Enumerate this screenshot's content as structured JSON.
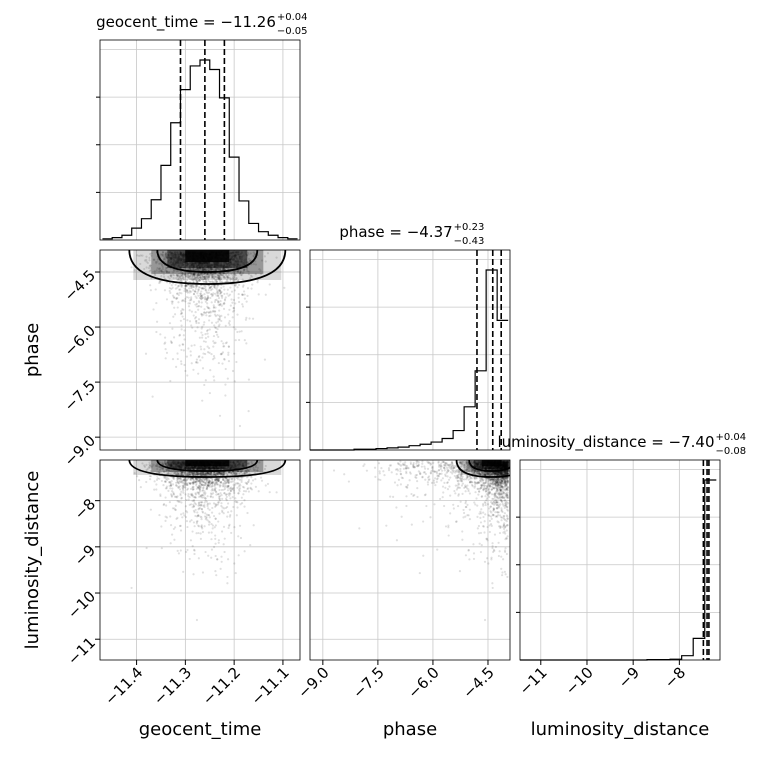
{
  "chart_data": {
    "type": "corner",
    "parameters": [
      "geocent_time",
      "phase",
      "luminosity_distance"
    ],
    "axis_labels": {
      "geocent_time": "geocent_time",
      "phase": "phase",
      "luminosity_distance": "luminosity_distance"
    },
    "titles": {
      "geocent_time": {
        "prefix": "geocent_time = ",
        "value": "−11.26",
        "plus": "+0.04",
        "minus": "−0.05"
      },
      "phase": {
        "prefix": "phase = ",
        "value": "−4.37",
        "plus": "+0.23",
        "minus": "−0.43"
      },
      "luminosity_distance": {
        "prefix": "luminosity_distance = ",
        "value": "−7.40",
        "plus": "+0.04",
        "minus": "−0.08"
      }
    },
    "ranges": {
      "geocent_time": [
        -11.475,
        -11.065
      ],
      "phase": [
        -9.35,
        -3.9
      ],
      "luminosity_distance": [
        -11.45,
        -7.12
      ]
    },
    "ticks": {
      "geocent_time": {
        "values": [
          -11.4,
          -11.3,
          -11.2,
          -11.1
        ],
        "labels": [
          "−11.4",
          "−11.3",
          "−11.2",
          "−11.1"
        ]
      },
      "phase": {
        "values": [
          -9.0,
          -7.5,
          -6.0,
          -4.5
        ],
        "labels": [
          "−9.0",
          "−7.5",
          "−6.0",
          "−4.5"
        ]
      },
      "luminosity_distance": {
        "values": [
          -11,
          -10,
          -9,
          -8
        ],
        "labels": [
          "−11",
          "−10",
          "−9",
          "−8"
        ]
      }
    },
    "quantiles": {
      "geocent_time": [
        -11.31,
        -11.26,
        -11.22
      ],
      "phase": [
        -4.8,
        -4.37,
        -4.14
      ],
      "luminosity_distance": [
        -7.48,
        -7.4,
        -7.36
      ]
    },
    "histograms": {
      "geocent_time": {
        "edges": [
          -11.47,
          -11.45,
          -11.43,
          -11.41,
          -11.39,
          -11.37,
          -11.35,
          -11.33,
          -11.31,
          -11.29,
          -11.27,
          -11.25,
          -11.23,
          -11.21,
          -11.19,
          -11.17,
          -11.15,
          -11.13,
          -11.11,
          -11.09,
          -11.07
        ],
        "counts": [
          1,
          2,
          4,
          10,
          18,
          34,
          63,
          99,
          127,
          147,
          152,
          144,
          120,
          70,
          33,
          14,
          7,
          4,
          2,
          1
        ]
      },
      "phase": {
        "edges": [
          -9.35,
          -9.05,
          -8.75,
          -8.45,
          -8.15,
          -7.85,
          -7.55,
          -7.25,
          -6.95,
          -6.65,
          -6.35,
          -6.05,
          -5.75,
          -5.45,
          -5.15,
          -4.85,
          -4.55,
          -4.25,
          -3.95
        ],
        "counts": [
          0,
          0,
          0,
          0,
          1,
          1,
          2,
          3,
          4,
          6,
          8,
          11,
          16,
          27,
          60,
          110,
          250,
          180
        ]
      },
      "luminosity_distance": {
        "edges": [
          -11.45,
          -11.2,
          -10.95,
          -10.7,
          -10.45,
          -10.2,
          -9.95,
          -9.7,
          -9.45,
          -9.2,
          -8.95,
          -8.7,
          -8.45,
          -8.2,
          -7.95,
          -7.7,
          -7.45,
          -7.2
        ],
        "counts": [
          0,
          0,
          0,
          0,
          0,
          0,
          0,
          0,
          0,
          0,
          0,
          1,
          1,
          2,
          12,
          60,
          500
        ]
      }
    },
    "scatter_hint": "dense posterior samples concentrated near the upper bound of phase and luminosity_distance"
  }
}
